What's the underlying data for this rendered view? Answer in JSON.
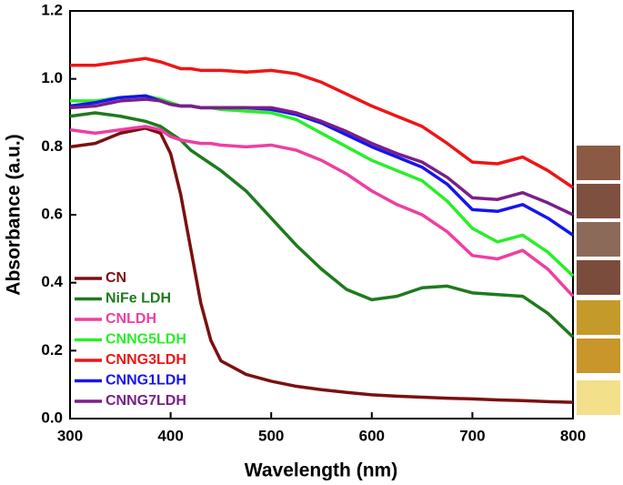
{
  "chart_data": {
    "type": "line",
    "xlabel": "Wavelength (nm)",
    "ylabel": "Absorbance (a.u.)",
    "xlim": [
      300,
      800
    ],
    "ylim": [
      0,
      1.2
    ],
    "xticks": [
      300,
      400,
      500,
      600,
      700,
      800
    ],
    "yticks": [
      {
        "value": 0,
        "label": "0.0"
      },
      0.2,
      0.4,
      0.6,
      0.8,
      {
        "value": 1,
        "label": "1.0"
      },
      1.2
    ],
    "x": [
      300,
      325,
      350,
      375,
      390,
      400,
      410,
      420,
      430,
      440,
      450,
      475,
      500,
      525,
      550,
      575,
      600,
      625,
      650,
      675,
      700,
      725,
      750,
      775,
      800
    ],
    "series": [
      {
        "name": "CN",
        "color": "#7b1010",
        "values": [
          0.8,
          0.81,
          0.84,
          0.855,
          0.84,
          0.78,
          0.66,
          0.5,
          0.34,
          0.23,
          0.17,
          0.13,
          0.11,
          0.095,
          0.085,
          0.077,
          0.07,
          0.066,
          0.063,
          0.06,
          0.058,
          0.055,
          0.053,
          0.05,
          0.048
        ]
      },
      {
        "name": "NiFe LDH",
        "color": "#1e7a1e",
        "values": [
          0.89,
          0.9,
          0.89,
          0.875,
          0.86,
          0.84,
          0.82,
          0.79,
          0.77,
          0.75,
          0.73,
          0.67,
          0.59,
          0.51,
          0.44,
          0.38,
          0.35,
          0.36,
          0.385,
          0.39,
          0.37,
          0.365,
          0.36,
          0.31,
          0.24
        ]
      },
      {
        "name": "CNLDH",
        "color": "#ee3fa0",
        "values": [
          0.85,
          0.84,
          0.85,
          0.86,
          0.85,
          0.83,
          0.82,
          0.815,
          0.81,
          0.81,
          0.805,
          0.8,
          0.805,
          0.79,
          0.76,
          0.72,
          0.67,
          0.63,
          0.6,
          0.55,
          0.48,
          0.47,
          0.495,
          0.44,
          0.36
        ]
      },
      {
        "name": "CNNG5LDH",
        "color": "#2aee2a",
        "values": [
          0.935,
          0.935,
          0.945,
          0.95,
          0.94,
          0.93,
          0.92,
          0.92,
          0.915,
          0.915,
          0.91,
          0.905,
          0.9,
          0.88,
          0.84,
          0.8,
          0.76,
          0.73,
          0.7,
          0.64,
          0.56,
          0.52,
          0.54,
          0.49,
          0.42
        ]
      },
      {
        "name": "CNNG3LDH",
        "color": "#ee1515",
        "values": [
          1.04,
          1.04,
          1.05,
          1.06,
          1.05,
          1.04,
          1.03,
          1.03,
          1.025,
          1.025,
          1.025,
          1.02,
          1.025,
          1.015,
          0.99,
          0.955,
          0.92,
          0.89,
          0.86,
          0.81,
          0.755,
          0.75,
          0.77,
          0.73,
          0.68
        ]
      },
      {
        "name": "CNNG1LDH",
        "color": "#1515ee",
        "values": [
          0.92,
          0.93,
          0.945,
          0.95,
          0.935,
          0.925,
          0.92,
          0.92,
          0.915,
          0.915,
          0.915,
          0.915,
          0.91,
          0.895,
          0.87,
          0.835,
          0.8,
          0.77,
          0.74,
          0.69,
          0.615,
          0.61,
          0.63,
          0.59,
          0.54
        ]
      },
      {
        "name": "CNNG7LDH",
        "color": "#7a1f8a",
        "values": [
          0.915,
          0.92,
          0.935,
          0.94,
          0.935,
          0.925,
          0.92,
          0.92,
          0.915,
          0.915,
          0.915,
          0.915,
          0.915,
          0.9,
          0.875,
          0.845,
          0.81,
          0.78,
          0.755,
          0.71,
          0.65,
          0.645,
          0.665,
          0.635,
          0.6
        ]
      }
    ]
  }
}
